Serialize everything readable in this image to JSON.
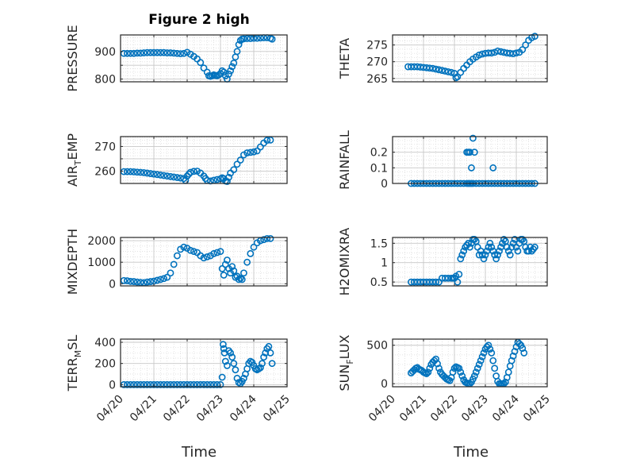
{
  "figure": {
    "title": "Figure 2 high",
    "xlabel": "Time",
    "x_tick_labels": [
      "04/20",
      "04/21",
      "04/22",
      "04/23",
      "04/24",
      "04/25"
    ]
  },
  "chart_data": [
    {
      "type": "scatter",
      "ylabel": "PRESSURE",
      "xlim": [
        0,
        5
      ],
      "ylim": [
        790,
        960
      ],
      "yticks": [
        800,
        850,
        900
      ],
      "ytick_labels": [
        "800",
        "",
        "900"
      ],
      "x": [
        0.1,
        0.2,
        0.3,
        0.4,
        0.5,
        0.6,
        0.7,
        0.8,
        0.9,
        1.0,
        1.1,
        1.2,
        1.3,
        1.4,
        1.5,
        1.6,
        1.7,
        1.8,
        1.9,
        2.0,
        2.1,
        2.2,
        2.3,
        2.4,
        2.5,
        2.6,
        2.65,
        2.7,
        2.75,
        2.8,
        2.85,
        2.9,
        2.95,
        3.0,
        3.05,
        3.1,
        3.15,
        3.2,
        3.25,
        3.3,
        3.35,
        3.4,
        3.45,
        3.5,
        3.55,
        3.6,
        3.65,
        3.7,
        3.8,
        3.9,
        4.0,
        4.1,
        4.2,
        4.3,
        4.4,
        4.5,
        4.55
      ],
      "y": [
        893,
        893,
        893,
        893,
        894,
        894,
        895,
        896,
        896,
        896,
        896,
        896,
        896,
        895,
        895,
        894,
        893,
        892,
        893,
        897,
        890,
        882,
        873,
        860,
        840,
        825,
        812,
        810,
        812,
        815,
        813,
        812,
        815,
        820,
        830,
        825,
        812,
        800,
        818,
        830,
        845,
        858,
        880,
        900,
        925,
        940,
        945,
        946,
        947,
        947,
        948,
        948,
        949,
        950,
        950,
        948,
        945
      ]
    },
    {
      "type": "scatter",
      "ylabel": "THETA",
      "xlim": [
        0,
        5
      ],
      "ylim": [
        264,
        278
      ],
      "yticks": [
        265,
        270,
        275
      ],
      "ytick_labels": [
        "265",
        "270",
        "275"
      ],
      "x": [
        0.5,
        0.6,
        0.7,
        0.8,
        0.9,
        1.0,
        1.1,
        1.2,
        1.3,
        1.4,
        1.5,
        1.6,
        1.7,
        1.8,
        1.9,
        2.0,
        2.05,
        2.1,
        2.2,
        2.3,
        2.4,
        2.5,
        2.6,
        2.7,
        2.8,
        2.9,
        3.0,
        3.1,
        3.2,
        3.3,
        3.4,
        3.5,
        3.6,
        3.7,
        3.8,
        3.9,
        4.0,
        4.1,
        4.2,
        4.3,
        4.4,
        4.5,
        4.6
      ],
      "y": [
        268.5,
        268.5,
        268.5,
        268.5,
        268.4,
        268.3,
        268.2,
        268.1,
        268.0,
        267.8,
        267.6,
        267.4,
        267.2,
        267.0,
        266.8,
        266.5,
        265.2,
        265.5,
        266.8,
        268.0,
        269.0,
        270.0,
        270.8,
        271.4,
        272.0,
        272.3,
        272.5,
        272.6,
        272.6,
        272.8,
        273.2,
        273.0,
        272.8,
        272.6,
        272.5,
        272.4,
        272.6,
        272.8,
        273.6,
        275.0,
        276.4,
        277.2,
        277.6
      ]
    },
    {
      "type": "scatter",
      "ylabel": "AIR_TEMP",
      "xlim": [
        0,
        5
      ],
      "ylim": [
        255,
        274
      ],
      "yticks": [
        260,
        265,
        270
      ],
      "ytick_labels": [
        "260",
        "",
        "270"
      ],
      "x": [
        0.1,
        0.2,
        0.3,
        0.4,
        0.5,
        0.6,
        0.7,
        0.8,
        0.9,
        1.0,
        1.1,
        1.2,
        1.3,
        1.4,
        1.5,
        1.6,
        1.7,
        1.8,
        1.9,
        1.95,
        2.0,
        2.05,
        2.1,
        2.2,
        2.3,
        2.4,
        2.5,
        2.55,
        2.6,
        2.7,
        2.8,
        2.9,
        3.0,
        3.05,
        3.1,
        3.15,
        3.2,
        3.25,
        3.3,
        3.4,
        3.5,
        3.6,
        3.7,
        3.8,
        3.9,
        4.0,
        4.1,
        4.2,
        4.3,
        4.4,
        4.5
      ],
      "y": [
        259.8,
        259.8,
        259.8,
        259.7,
        259.6,
        259.5,
        259.4,
        259.2,
        259.0,
        258.8,
        258.6,
        258.4,
        258.2,
        258.0,
        257.8,
        257.6,
        257.4,
        257.2,
        257.0,
        256.2,
        258.0,
        258.8,
        259.5,
        259.9,
        260.0,
        259.2,
        258.0,
        257.0,
        256.2,
        256.0,
        256.3,
        256.6,
        256.9,
        257.3,
        257.0,
        256.0,
        255.8,
        257.5,
        259.2,
        260.6,
        262.8,
        264.5,
        266.6,
        267.4,
        267.6,
        267.8,
        268.2,
        269.8,
        271.4,
        272.5,
        272.6
      ]
    },
    {
      "type": "scatter",
      "ylabel": "RAINFALL",
      "xlim": [
        0,
        5
      ],
      "ylim": [
        0,
        0.3
      ],
      "yticks": [
        0,
        0.1,
        0.2
      ],
      "ytick_labels": [
        "0",
        "0.1",
        "0.2"
      ],
      "x": [
        0.6,
        0.7,
        0.8,
        0.9,
        1.0,
        1.1,
        1.2,
        1.3,
        1.4,
        1.5,
        1.6,
        1.7,
        1.8,
        1.9,
        2.0,
        2.1,
        2.2,
        2.3,
        2.4,
        2.45,
        2.5,
        2.55,
        2.6,
        2.7,
        2.8,
        2.9,
        3.0,
        3.1,
        3.2,
        3.3,
        3.4,
        3.5,
        3.6,
        3.7,
        3.8,
        3.9,
        4.0,
        4.1,
        4.2,
        4.3,
        4.4,
        4.5,
        4.6,
        2.4,
        2.45,
        2.55,
        2.6,
        2.5,
        2.65,
        3.25
      ],
      "y": [
        0,
        0,
        0,
        0,
        0,
        0,
        0,
        0,
        0,
        0,
        0,
        0,
        0,
        0,
        0,
        0,
        0,
        0,
        0,
        0,
        0,
        0,
        0,
        0,
        0,
        0,
        0,
        0,
        0,
        0,
        0,
        0,
        0,
        0,
        0,
        0,
        0,
        0,
        0,
        0,
        0,
        0,
        0,
        0.2,
        0.2,
        0.1,
        0.29,
        0.2,
        0.2,
        0.1
      ]
    },
    {
      "type": "scatter",
      "ylabel": "MIXDEPTH",
      "xlim": [
        0,
        5
      ],
      "ylim": [
        -100,
        2150
      ],
      "yticks": [
        0,
        1000,
        2000
      ],
      "ytick_labels": [
        "0",
        "1000",
        "2000"
      ],
      "x": [
        0.1,
        0.2,
        0.3,
        0.4,
        0.5,
        0.6,
        0.7,
        0.8,
        0.9,
        1.0,
        1.1,
        1.2,
        1.3,
        1.4,
        1.5,
        1.6,
        1.7,
        1.8,
        1.9,
        2.0,
        2.1,
        2.2,
        2.3,
        2.4,
        2.5,
        2.6,
        2.7,
        2.8,
        2.9,
        3.0,
        3.05,
        3.1,
        3.15,
        3.2,
        3.25,
        3.3,
        3.35,
        3.4,
        3.45,
        3.5,
        3.55,
        3.6,
        3.65,
        3.7,
        3.8,
        3.9,
        4.0,
        4.1,
        4.2,
        4.3,
        4.4,
        4.5
      ],
      "y": [
        150,
        140,
        110,
        100,
        80,
        60,
        50,
        80,
        100,
        120,
        160,
        200,
        240,
        300,
        500,
        900,
        1300,
        1600,
        1700,
        1650,
        1550,
        1500,
        1450,
        1300,
        1200,
        1250,
        1300,
        1400,
        1450,
        1500,
        700,
        400,
        900,
        1100,
        700,
        500,
        800,
        600,
        300,
        350,
        200,
        250,
        200,
        500,
        1000,
        1400,
        1700,
        1900,
        2000,
        2050,
        2100,
        2100
      ]
    },
    {
      "type": "scatter",
      "ylabel": "H2OMIXRA",
      "xlim": [
        0,
        5
      ],
      "ylim": [
        0.4,
        1.65
      ],
      "yticks": [
        0.5,
        1.0,
        1.5
      ],
      "ytick_labels": [
        "0.5",
        "1",
        "1.5"
      ],
      "x": [
        0.6,
        0.7,
        0.8,
        0.9,
        1.0,
        1.1,
        1.2,
        1.3,
        1.4,
        1.5,
        1.6,
        1.7,
        1.8,
        1.9,
        1.95,
        2.0,
        2.05,
        2.1,
        2.15,
        2.2,
        2.25,
        2.3,
        2.35,
        2.4,
        2.45,
        2.5,
        2.55,
        2.6,
        2.65,
        2.7,
        2.75,
        2.8,
        2.85,
        2.9,
        2.95,
        3.0,
        3.05,
        3.1,
        3.15,
        3.2,
        3.25,
        3.3,
        3.35,
        3.4,
        3.45,
        3.5,
        3.55,
        3.6,
        3.65,
        3.7,
        3.75,
        3.8,
        3.85,
        3.9,
        3.95,
        4.0,
        4.05,
        4.1,
        4.15,
        4.2,
        4.25,
        4.3,
        4.35,
        4.4,
        4.45,
        4.5,
        4.55,
        4.6
      ],
      "y": [
        0.5,
        0.5,
        0.5,
        0.5,
        0.5,
        0.5,
        0.5,
        0.5,
        0.5,
        0.5,
        0.6,
        0.6,
        0.6,
        0.6,
        0.6,
        0.6,
        0.65,
        0.5,
        0.7,
        1.1,
        1.2,
        1.3,
        1.4,
        1.45,
        1.5,
        1.4,
        1.5,
        1.6,
        1.6,
        1.55,
        1.4,
        1.2,
        1.3,
        1.2,
        1.1,
        1.2,
        1.3,
        1.4,
        1.5,
        1.4,
        1.3,
        1.2,
        1.1,
        1.2,
        1.3,
        1.4,
        1.5,
        1.6,
        1.55,
        1.4,
        1.3,
        1.2,
        1.4,
        1.5,
        1.6,
        1.4,
        1.3,
        1.5,
        1.6,
        1.6,
        1.55,
        1.4,
        1.3,
        1.3,
        1.4,
        1.3,
        1.35,
        1.4
      ]
    },
    {
      "type": "scatter",
      "ylabel": "TERR_MSL",
      "xlim": [
        0,
        5
      ],
      "ylim": [
        -20,
        430
      ],
      "yticks": [
        0,
        200,
        400
      ],
      "ytick_labels": [
        "0",
        "200",
        "400"
      ],
      "x": [
        0.1,
        0.2,
        0.3,
        0.4,
        0.5,
        0.6,
        0.7,
        0.8,
        0.9,
        1.0,
        1.1,
        1.2,
        1.3,
        1.4,
        1.5,
        1.6,
        1.7,
        1.8,
        1.9,
        2.0,
        2.1,
        2.2,
        2.3,
        2.4,
        2.5,
        2.6,
        2.7,
        2.8,
        2.9,
        3.0,
        3.05,
        3.08,
        3.1,
        3.12,
        3.15,
        3.2,
        3.25,
        3.3,
        3.35,
        3.4,
        3.45,
        3.5,
        3.55,
        3.6,
        3.65,
        3.7,
        3.75,
        3.8,
        3.85,
        3.9,
        3.95,
        4.0,
        4.05,
        4.1,
        4.15,
        4.2,
        4.25,
        4.3,
        4.35,
        4.4,
        4.45,
        4.5,
        4.55
      ],
      "y": [
        0,
        0,
        0,
        0,
        0,
        0,
        0,
        0,
        0,
        0,
        0,
        0,
        0,
        0,
        0,
        0,
        0,
        0,
        0,
        0,
        0,
        0,
        0,
        0,
        0,
        0,
        0,
        0,
        0,
        0,
        70,
        380,
        340,
        300,
        220,
        180,
        320,
        300,
        260,
        200,
        140,
        60,
        20,
        10,
        30,
        60,
        100,
        150,
        200,
        220,
        210,
        180,
        150,
        140,
        150,
        160,
        200,
        260,
        300,
        340,
        360,
        300,
        200
      ]
    },
    {
      "type": "scatter",
      "ylabel": "SUN_FLUX",
      "xlim": [
        0,
        5
      ],
      "ylim": [
        -40,
        580
      ],
      "yticks": [
        0,
        500
      ],
      "ytick_labels": [
        "0",
        "500"
      ],
      "x": [
        0.6,
        0.65,
        0.7,
        0.75,
        0.8,
        0.85,
        0.9,
        0.95,
        1.0,
        1.05,
        1.1,
        1.15,
        1.2,
        1.25,
        1.3,
        1.35,
        1.4,
        1.45,
        1.5,
        1.55,
        1.6,
        1.65,
        1.7,
        1.75,
        1.8,
        1.85,
        1.9,
        1.95,
        2.0,
        2.05,
        2.1,
        2.15,
        2.2,
        2.25,
        2.3,
        2.35,
        2.4,
        2.45,
        2.5,
        2.55,
        2.6,
        2.65,
        2.7,
        2.75,
        2.8,
        2.85,
        2.9,
        2.95,
        3.0,
        3.05,
        3.1,
        3.15,
        3.2,
        3.25,
        3.3,
        3.35,
        3.4,
        3.45,
        3.5,
        3.55,
        3.6,
        3.65,
        3.7,
        3.75,
        3.8,
        3.85,
        3.9,
        3.95,
        4.0,
        4.05,
        4.1,
        4.15,
        4.2,
        4.25
      ],
      "y": [
        140,
        160,
        180,
        200,
        210,
        190,
        180,
        170,
        150,
        140,
        130,
        150,
        200,
        250,
        280,
        300,
        320,
        260,
        200,
        150,
        120,
        100,
        80,
        60,
        50,
        40,
        80,
        150,
        200,
        220,
        210,
        200,
        150,
        100,
        50,
        20,
        10,
        0,
        0,
        20,
        60,
        100,
        150,
        200,
        250,
        300,
        350,
        400,
        450,
        480,
        500,
        450,
        400,
        300,
        200,
        100,
        30,
        0,
        0,
        0,
        0,
        20,
        80,
        150,
        230,
        300,
        360,
        420,
        480,
        540,
        520,
        500,
        460,
        400
      ]
    }
  ]
}
